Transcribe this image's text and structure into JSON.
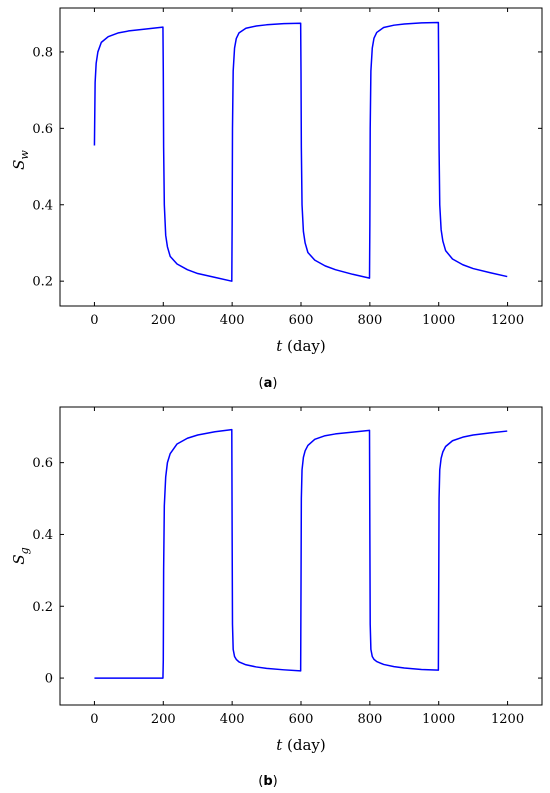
{
  "chart_data": [
    {
      "type": "line",
      "panel": "a",
      "caption_open": "(",
      "caption_letter": "a",
      "caption_close": ")",
      "ylabel_main": "S",
      "ylabel_sub": "w",
      "xlabel_var": "t",
      "xlabel_unit": "(day)",
      "xlim": [
        -100,
        1300
      ],
      "ylim": [
        0.135,
        0.915
      ],
      "xticks": [
        0,
        200,
        400,
        600,
        800,
        1000,
        1200
      ],
      "xtick_labels": [
        "0",
        "200",
        "400",
        "600",
        "800",
        "1000",
        "1200"
      ],
      "yticks": [
        0.2,
        0.4,
        0.6,
        0.8
      ],
      "ytick_labels": [
        "0.2",
        "0.4",
        "0.6",
        "0.8"
      ],
      "grid": false,
      "legend": "none",
      "color": "#0000ff",
      "series": [
        {
          "x": [
            0,
            2,
            5,
            10,
            20,
            40,
            70,
            100,
            150,
            199,
            200,
            201,
            203,
            207,
            212,
            220,
            240,
            270,
            300,
            350,
            399,
            400,
            401,
            403,
            407,
            412,
            420,
            440,
            470,
            500,
            550,
            599,
            600,
            601,
            603,
            607,
            612,
            620,
            640,
            670,
            700,
            750,
            799,
            800,
            801,
            803,
            807,
            812,
            820,
            840,
            870,
            900,
            950,
            999,
            1000,
            1001,
            1003,
            1007,
            1012,
            1020,
            1040,
            1070,
            1100,
            1150,
            1199
          ],
          "y": [
            0.555,
            0.72,
            0.77,
            0.8,
            0.825,
            0.84,
            0.85,
            0.855,
            0.86,
            0.865,
            0.75,
            0.55,
            0.4,
            0.32,
            0.29,
            0.265,
            0.245,
            0.23,
            0.22,
            0.21,
            0.2,
            0.35,
            0.6,
            0.75,
            0.81,
            0.835,
            0.85,
            0.862,
            0.868,
            0.871,
            0.874,
            0.875,
            0.75,
            0.55,
            0.4,
            0.33,
            0.3,
            0.275,
            0.255,
            0.24,
            0.23,
            0.218,
            0.208,
            0.35,
            0.6,
            0.75,
            0.81,
            0.836,
            0.851,
            0.864,
            0.87,
            0.873,
            0.876,
            0.877,
            0.75,
            0.55,
            0.4,
            0.335,
            0.305,
            0.28,
            0.258,
            0.243,
            0.233,
            0.222,
            0.212
          ]
        }
      ]
    },
    {
      "type": "line",
      "panel": "b",
      "caption_open": "(",
      "caption_letter": "b",
      "caption_close": ")",
      "ylabel_main": "S",
      "ylabel_sub": "g",
      "xlabel_var": "t",
      "xlabel_unit": "(day)",
      "xlim": [
        -100,
        1300
      ],
      "ylim": [
        -0.075,
        0.755
      ],
      "xticks": [
        0,
        200,
        400,
        600,
        800,
        1000,
        1200
      ],
      "xtick_labels": [
        "0",
        "200",
        "400",
        "600",
        "800",
        "1000",
        "1200"
      ],
      "yticks": [
        0,
        0.2,
        0.4,
        0.6
      ],
      "ytick_labels": [
        "0",
        "0.2",
        "0.4",
        "0.6"
      ],
      "grid": false,
      "legend": "none",
      "color": "#0000ff",
      "series": [
        {
          "x": [
            0,
            100,
            199,
            200,
            201,
            203,
            207,
            212,
            220,
            240,
            270,
            300,
            350,
            399,
            400,
            401,
            403,
            407,
            412,
            420,
            440,
            470,
            500,
            550,
            599,
            600,
            601,
            603,
            607,
            612,
            620,
            640,
            670,
            700,
            750,
            799,
            800,
            801,
            803,
            807,
            812,
            820,
            840,
            870,
            900,
            950,
            999,
            1000,
            1001,
            1003,
            1007,
            1012,
            1020,
            1040,
            1070,
            1100,
            1150,
            1199
          ],
          "y": [
            0,
            0,
            0,
            0.05,
            0.3,
            0.48,
            0.56,
            0.6,
            0.625,
            0.652,
            0.668,
            0.677,
            0.686,
            0.692,
            0.4,
            0.15,
            0.08,
            0.06,
            0.052,
            0.045,
            0.037,
            0.031,
            0.027,
            0.023,
            0.02,
            0.25,
            0.5,
            0.58,
            0.615,
            0.633,
            0.648,
            0.665,
            0.675,
            0.68,
            0.685,
            0.69,
            0.4,
            0.15,
            0.08,
            0.06,
            0.052,
            0.046,
            0.038,
            0.032,
            0.028,
            0.024,
            0.022,
            0.25,
            0.5,
            0.58,
            0.612,
            0.63,
            0.645,
            0.661,
            0.671,
            0.677,
            0.683,
            0.688
          ]
        }
      ]
    }
  ]
}
